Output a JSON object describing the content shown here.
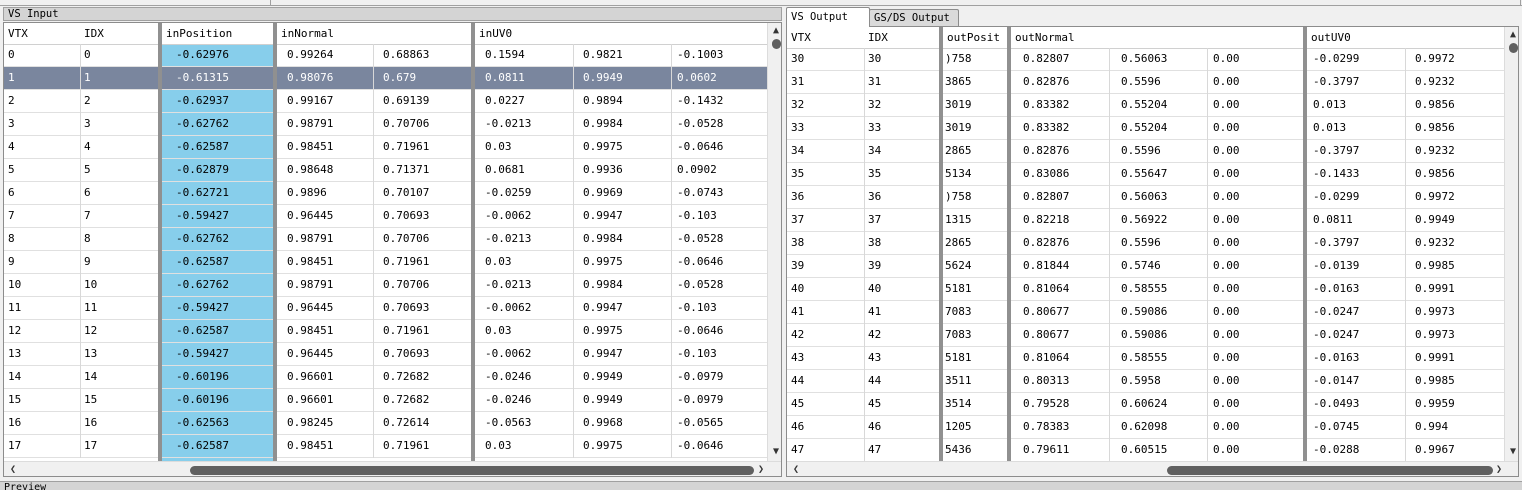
{
  "left_panel": {
    "title": "VS Input",
    "columns": [
      "VTX",
      "IDX",
      "inPosition",
      "inNormal",
      "inUV0"
    ],
    "rows": [
      [
        "0",
        "0",
        "-0.62976",
        "0.99264",
        "0.68863",
        "0.1594",
        "0.9821",
        "-0.1003"
      ],
      [
        "1",
        "1",
        "-0.61315",
        "0.98076",
        "0.679",
        "0.0811",
        "0.9949",
        "0.0602"
      ],
      [
        "2",
        "2",
        "-0.62937",
        "0.99167",
        "0.69139",
        "0.0227",
        "0.9894",
        "-0.1432"
      ],
      [
        "3",
        "3",
        "-0.62762",
        "0.98791",
        "0.70706",
        "-0.0213",
        "0.9984",
        "-0.0528"
      ],
      [
        "4",
        "4",
        "-0.62587",
        "0.98451",
        "0.71961",
        "0.03",
        "0.9975",
        "-0.0646"
      ],
      [
        "5",
        "5",
        "-0.62879",
        "0.98648",
        "0.71371",
        "0.0681",
        "0.9936",
        "0.0902"
      ],
      [
        "6",
        "6",
        "-0.62721",
        "0.9896",
        "0.70107",
        "-0.0259",
        "0.9969",
        "-0.0743"
      ],
      [
        "7",
        "7",
        "-0.59427",
        "0.96445",
        "0.70693",
        "-0.0062",
        "0.9947",
        "-0.103"
      ],
      [
        "8",
        "8",
        "-0.62762",
        "0.98791",
        "0.70706",
        "-0.0213",
        "0.9984",
        "-0.0528"
      ],
      [
        "9",
        "9",
        "-0.62587",
        "0.98451",
        "0.71961",
        "0.03",
        "0.9975",
        "-0.0646"
      ],
      [
        "10",
        "10",
        "-0.62762",
        "0.98791",
        "0.70706",
        "-0.0213",
        "0.9984",
        "-0.0528"
      ],
      [
        "11",
        "11",
        "-0.59427",
        "0.96445",
        "0.70693",
        "-0.0062",
        "0.9947",
        "-0.103"
      ],
      [
        "12",
        "12",
        "-0.62587",
        "0.98451",
        "0.71961",
        "0.03",
        "0.9975",
        "-0.0646"
      ],
      [
        "13",
        "13",
        "-0.59427",
        "0.96445",
        "0.70693",
        "-0.0062",
        "0.9947",
        "-0.103"
      ],
      [
        "14",
        "14",
        "-0.60196",
        "0.96601",
        "0.72682",
        "-0.0246",
        "0.9949",
        "-0.0979"
      ],
      [
        "15",
        "15",
        "-0.60196",
        "0.96601",
        "0.72682",
        "-0.0246",
        "0.9949",
        "-0.0979"
      ],
      [
        "16",
        "16",
        "-0.62563",
        "0.98245",
        "0.72614",
        "-0.0563",
        "0.9968",
        "-0.0565"
      ],
      [
        "17",
        "17",
        "-0.62587",
        "0.98451",
        "0.71961",
        "0.03",
        "0.9975",
        "-0.0646"
      ]
    ],
    "selected_row": 1
  },
  "right_panel": {
    "tabs": [
      "VS Output",
      "GS/DS Output"
    ],
    "active_tab": 0,
    "columns": [
      "VTX",
      "IDX",
      "outPosit",
      "outNormal",
      "outUV0"
    ],
    "rows": [
      [
        "30",
        "30",
        ")758",
        "0.82807",
        "0.56063",
        "0.00",
        "-0.0299",
        "0.9972"
      ],
      [
        "31",
        "31",
        "3865",
        "0.82876",
        "0.5596",
        "0.00",
        "-0.3797",
        "0.9232"
      ],
      [
        "32",
        "32",
        "3019",
        "0.83382",
        "0.55204",
        "0.00",
        "0.013",
        "0.9856"
      ],
      [
        "33",
        "33",
        "3019",
        "0.83382",
        "0.55204",
        "0.00",
        "0.013",
        "0.9856"
      ],
      [
        "34",
        "34",
        "2865",
        "0.82876",
        "0.5596",
        "0.00",
        "-0.3797",
        "0.9232"
      ],
      [
        "35",
        "35",
        "5134",
        "0.83086",
        "0.55647",
        "0.00",
        "-0.1433",
        "0.9856"
      ],
      [
        "36",
        "36",
        ")758",
        "0.82807",
        "0.56063",
        "0.00",
        "-0.0299",
        "0.9972"
      ],
      [
        "37",
        "37",
        "1315",
        "0.82218",
        "0.56922",
        "0.00",
        "0.0811",
        "0.9949"
      ],
      [
        "38",
        "38",
        "2865",
        "0.82876",
        "0.5596",
        "0.00",
        "-0.3797",
        "0.9232"
      ],
      [
        "39",
        "39",
        "5624",
        "0.81844",
        "0.5746",
        "0.00",
        "-0.0139",
        "0.9985"
      ],
      [
        "40",
        "40",
        "5181",
        "0.81064",
        "0.58555",
        "0.00",
        "-0.0163",
        "0.9991"
      ],
      [
        "41",
        "41",
        "7083",
        "0.80677",
        "0.59086",
        "0.00",
        "-0.0247",
        "0.9973"
      ],
      [
        "42",
        "42",
        "7083",
        "0.80677",
        "0.59086",
        "0.00",
        "-0.0247",
        "0.9973"
      ],
      [
        "43",
        "43",
        "5181",
        "0.81064",
        "0.58555",
        "0.00",
        "-0.0163",
        "0.9991"
      ],
      [
        "44",
        "44",
        "3511",
        "0.80313",
        "0.5958",
        "0.00",
        "-0.0147",
        "0.9985"
      ],
      [
        "45",
        "45",
        "3514",
        "0.79528",
        "0.60624",
        "0.00",
        "-0.0493",
        "0.9959"
      ],
      [
        "46",
        "46",
        "1205",
        "0.78383",
        "0.62098",
        "0.00",
        "-0.0745",
        "0.994"
      ],
      [
        "47",
        "47",
        "5436",
        "0.79611",
        "0.60515",
        "0.00",
        "-0.0288",
        "0.9967"
      ]
    ]
  },
  "bottom": {
    "title": "Preview"
  },
  "icons": {
    "scroll_up": "scroll-up-arrow-icon",
    "scroll_down": "scroll-down-arrow-icon",
    "scroll_left": "scroll-left-arrow-icon",
    "scroll_right": "scroll-right-arrow-icon"
  },
  "colors": {
    "selection": "#7a869e",
    "position_highlight": "#87ceeb",
    "scroll_thumb": "#606060"
  }
}
